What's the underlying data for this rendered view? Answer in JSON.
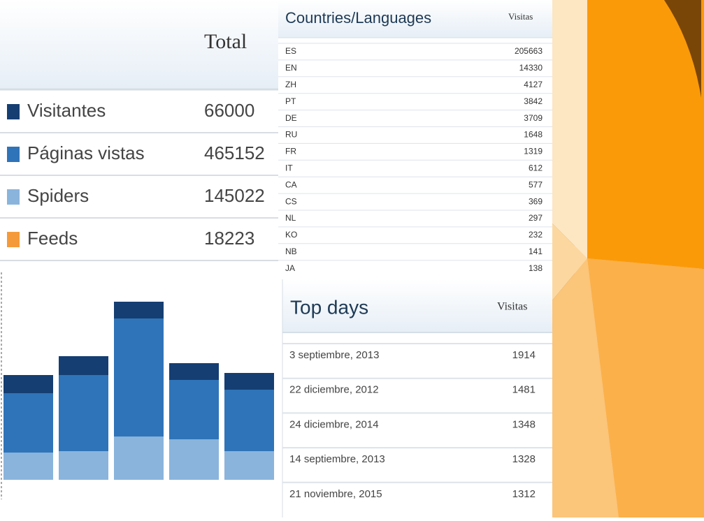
{
  "summary": {
    "header": "Total",
    "rows": [
      {
        "label": "Visitantes",
        "value": 66000,
        "color": "#153e72"
      },
      {
        "label": "Páginas vistas",
        "value": 465152,
        "color": "#2f74b8"
      },
      {
        "label": "Spiders",
        "value": 145022,
        "color": "#8ab4dc"
      },
      {
        "label": "Feeds",
        "value": 18223,
        "color": "#f59a3a"
      }
    ]
  },
  "chart_data": {
    "type": "bar",
    "stacked": true,
    "ylim": [
      0,
      300
    ],
    "series": [
      {
        "color": "#8ab4dc",
        "values": [
          39,
          41,
          62,
          58,
          41
        ]
      },
      {
        "color": "#2f74b8",
        "values": [
          85,
          109,
          169,
          85,
          88
        ]
      },
      {
        "color": "#153e72",
        "values": [
          26,
          27,
          24,
          24,
          24
        ]
      }
    ]
  },
  "countries": {
    "title": "Countries/Languages",
    "column": "Visitas",
    "rows": [
      [
        "ES",
        205663
      ],
      [
        "EN",
        14330
      ],
      [
        "ZH",
        4127
      ],
      [
        "PT",
        3842
      ],
      [
        "DE",
        3709
      ],
      [
        "RU",
        1648
      ],
      [
        "FR",
        1319
      ],
      [
        "IT",
        612
      ],
      [
        "CA",
        577
      ],
      [
        "CS",
        369
      ],
      [
        "NL",
        297
      ],
      [
        "KO",
        232
      ],
      [
        "NB",
        141
      ],
      [
        "JA",
        138
      ]
    ]
  },
  "top_days": {
    "title": "Top days",
    "column": "Visitas",
    "rows": [
      [
        "3 septiembre, 2013",
        1914
      ],
      [
        "22 diciembre, 2012",
        1481
      ],
      [
        "24 diciembre, 2014",
        1348
      ],
      [
        "14 septiembre, 2013",
        1328
      ],
      [
        "21 noviembre, 2015",
        1312
      ]
    ]
  }
}
